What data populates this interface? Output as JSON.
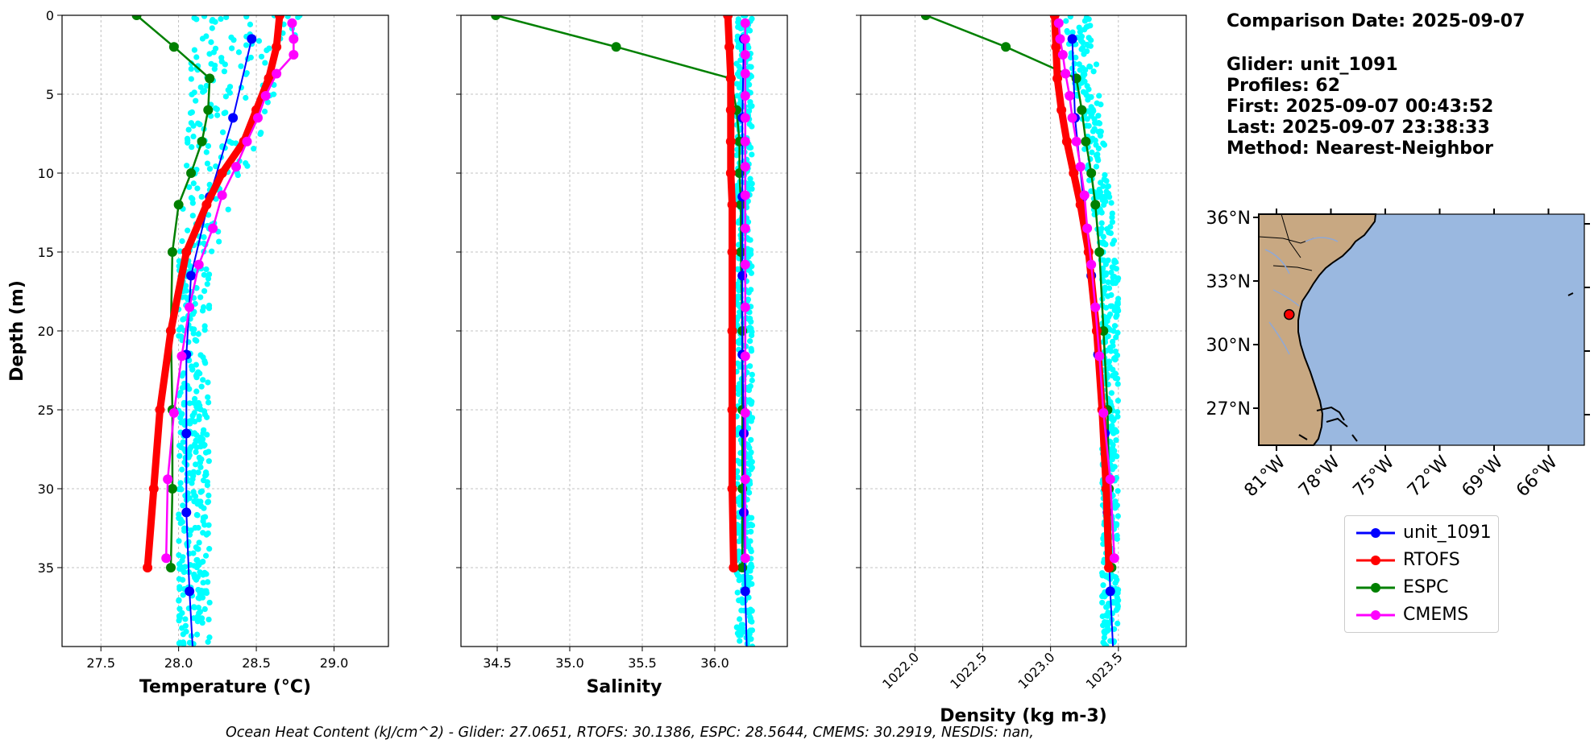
{
  "info": {
    "title": "Comparison Date: 2025-09-07",
    "glider": "Glider: unit_1091",
    "profiles": "Profiles: 62",
    "first": "First: 2025-09-07 00:43:52",
    "last": "Last: 2025-09-07 23:38:33",
    "method": "Method: Nearest-Neighbor"
  },
  "footer": "Ocean Heat Content (kJ/cm^2) - Glider: 27.0651,  RTOFS: 30.1386,  ESPC: 28.5644,  CMEMS: 30.2919,  NESDIS: nan,",
  "colors": {
    "glider": "#0000ff",
    "rtofs": "#ff0000",
    "espc": "#008000",
    "cmems": "#ff00ff",
    "scatter": "#00ffff",
    "land": "#c8a882",
    "ocean": "#9ab8e0",
    "grid": "#b0b0b0"
  },
  "legend": [
    {
      "label": "unit_1091",
      "color": "#0000ff"
    },
    {
      "label": "RTOFS",
      "color": "#ff0000"
    },
    {
      "label": "ESPC",
      "color": "#008000"
    },
    {
      "label": "CMEMS",
      "color": "#ff00ff"
    }
  ],
  "chart_data": [
    {
      "type": "line",
      "name": "temperature",
      "xlabel": "Temperature (°C)",
      "ylabel": "Depth (m)",
      "xlim": [
        27.25,
        29.35
      ],
      "ylim": [
        40,
        0
      ],
      "xticks": [
        27.5,
        28.0,
        28.5,
        29.0
      ],
      "xtick_labels": [
        "27.5",
        "28.0",
        "28.5",
        "29.0"
      ],
      "yticks": [
        0,
        5,
        10,
        15,
        20,
        25,
        30,
        35
      ],
      "ytick_labels": [
        "0",
        "5",
        "10",
        "15",
        "20",
        "25",
        "30",
        "35"
      ],
      "grid": true,
      "scatter_range": {
        "near_surface": [
          28.1,
          28.85
        ],
        "deep": [
          28.0,
          28.2
        ]
      },
      "series": [
        {
          "name": "unit_1091",
          "depth": [
            1.5,
            6.5,
            11.5,
            16.5,
            21.5,
            26.5,
            31.5,
            36.5,
            40
          ],
          "values": [
            28.47,
            28.35,
            28.2,
            28.08,
            28.05,
            28.05,
            28.05,
            28.07,
            28.09
          ]
        },
        {
          "name": "RTOFS",
          "depth": [
            0,
            2,
            4,
            6,
            8,
            10,
            12,
            15,
            20,
            25,
            30,
            35
          ],
          "values": [
            28.65,
            28.63,
            28.58,
            28.5,
            28.42,
            28.28,
            28.18,
            28.05,
            27.95,
            27.88,
            27.84,
            27.8
          ]
        },
        {
          "name": "ESPC",
          "depth": [
            0,
            2,
            4,
            6,
            8,
            10,
            12,
            15,
            20,
            25,
            30,
            35
          ],
          "values": [
            27.73,
            27.97,
            28.2,
            28.19,
            28.15,
            28.08,
            28.0,
            27.96,
            27.95,
            27.96,
            27.96,
            27.95
          ]
        },
        {
          "name": "CMEMS",
          "depth": [
            0.5,
            1.5,
            2.5,
            3.7,
            5.1,
            6.5,
            8.0,
            9.6,
            11.4,
            13.5,
            15.8,
            18.5,
            21.6,
            25.2,
            29.4,
            34.4
          ],
          "values": [
            28.73,
            28.74,
            28.74,
            28.63,
            28.56,
            28.51,
            28.44,
            28.37,
            28.28,
            28.22,
            28.13,
            28.07,
            28.02,
            27.97,
            27.93,
            27.92
          ]
        }
      ]
    },
    {
      "type": "line",
      "name": "salinity",
      "xlabel": "Salinity",
      "xlim": [
        34.25,
        36.5
      ],
      "ylim": [
        40,
        0
      ],
      "xticks": [
        34.5,
        35.0,
        35.5,
        36.0
      ],
      "xtick_labels": [
        "34.5",
        "35.0",
        "35.5",
        "36.0"
      ],
      "grid": true,
      "scatter_range": {
        "near_surface": [
          36.15,
          36.26
        ],
        "deep": [
          36.15,
          36.26
        ]
      },
      "series": [
        {
          "name": "unit_1091",
          "depth": [
            1.5,
            6.5,
            11.5,
            16.5,
            21.5,
            26.5,
            31.5,
            36.5,
            40
          ],
          "values": [
            36.2,
            36.19,
            36.19,
            36.19,
            36.19,
            36.2,
            36.2,
            36.21,
            36.22
          ]
        },
        {
          "name": "RTOFS",
          "depth": [
            0,
            2,
            4,
            6,
            8,
            10,
            12,
            15,
            20,
            25,
            30,
            35
          ],
          "values": [
            36.09,
            36.1,
            36.11,
            36.11,
            36.11,
            36.11,
            36.12,
            36.12,
            36.12,
            36.12,
            36.12,
            36.13
          ]
        },
        {
          "name": "ESPC",
          "depth": [
            0,
            2,
            4,
            6,
            8,
            10,
            12,
            15,
            20,
            25,
            30,
            35
          ],
          "values": [
            34.49,
            35.32,
            36.11,
            36.15,
            36.17,
            36.17,
            36.18,
            36.18,
            36.19,
            36.19,
            36.19,
            36.19
          ]
        },
        {
          "name": "CMEMS",
          "depth": [
            0.5,
            1.5,
            2.5,
            3.7,
            5.1,
            6.5,
            8.0,
            9.6,
            11.4,
            13.5,
            15.8,
            18.5,
            21.6,
            25.2,
            29.4,
            34.4
          ],
          "values": [
            36.21,
            36.21,
            36.21,
            36.21,
            36.21,
            36.21,
            36.21,
            36.21,
            36.21,
            36.21,
            36.21,
            36.21,
            36.21,
            36.21,
            36.21,
            36.21
          ]
        }
      ]
    },
    {
      "type": "line",
      "name": "density",
      "xlabel": "Density (kg m-3)",
      "xlim": [
        1021.6,
        1024.0
      ],
      "ylim": [
        40,
        0
      ],
      "xticks": [
        1022.0,
        1022.5,
        1023.0,
        1023.5
      ],
      "xtick_labels": [
        "1022.0",
        "1022.5",
        "1023.0",
        "1023.5"
      ],
      "grid": true,
      "scatter_range": {
        "near_surface": [
          1023.1,
          1023.3
        ],
        "deep": [
          1023.38,
          1023.5
        ]
      },
      "series": [
        {
          "name": "unit_1091",
          "depth": [
            1.5,
            6.5,
            11.5,
            16.5,
            21.5,
            26.5,
            31.5,
            36.5,
            40
          ],
          "values": [
            1023.16,
            1023.18,
            1023.24,
            1023.3,
            1023.35,
            1023.4,
            1023.42,
            1023.44,
            1023.46
          ]
        },
        {
          "name": "RTOFS",
          "depth": [
            0,
            2,
            4,
            6,
            8,
            10,
            12,
            15,
            20,
            25,
            30,
            35
          ],
          "values": [
            1023.03,
            1023.04,
            1023.05,
            1023.08,
            1023.12,
            1023.17,
            1023.22,
            1023.28,
            1023.34,
            1023.38,
            1023.41,
            1023.43
          ]
        },
        {
          "name": "ESPC",
          "depth": [
            0,
            2,
            4,
            6,
            8,
            10,
            12,
            15,
            20,
            25,
            30,
            35
          ],
          "values": [
            1022.08,
            1022.67,
            1023.19,
            1023.23,
            1023.26,
            1023.3,
            1023.33,
            1023.36,
            1023.39,
            1023.42,
            1023.43,
            1023.45
          ]
        },
        {
          "name": "CMEMS",
          "depth": [
            0.5,
            1.5,
            2.5,
            3.7,
            5.1,
            6.5,
            8.0,
            9.6,
            11.4,
            13.5,
            15.8,
            18.5,
            21.6,
            25.2,
            29.4,
            34.4
          ],
          "values": [
            1023.06,
            1023.07,
            1023.09,
            1023.11,
            1023.14,
            1023.16,
            1023.19,
            1023.22,
            1023.25,
            1023.27,
            1023.3,
            1023.33,
            1023.36,
            1023.39,
            1023.44,
            1023.47
          ]
        }
      ]
    },
    {
      "type": "map",
      "name": "location",
      "lat_ticks": [
        "36°N",
        "33°N",
        "30°N",
        "27°N"
      ],
      "lon_ticks": [
        "81°W",
        "78°W",
        "75°W",
        "72°W",
        "69°W",
        "66°W"
      ],
      "marker": {
        "lat": 31.4,
        "lon": -80.3
      }
    }
  ]
}
